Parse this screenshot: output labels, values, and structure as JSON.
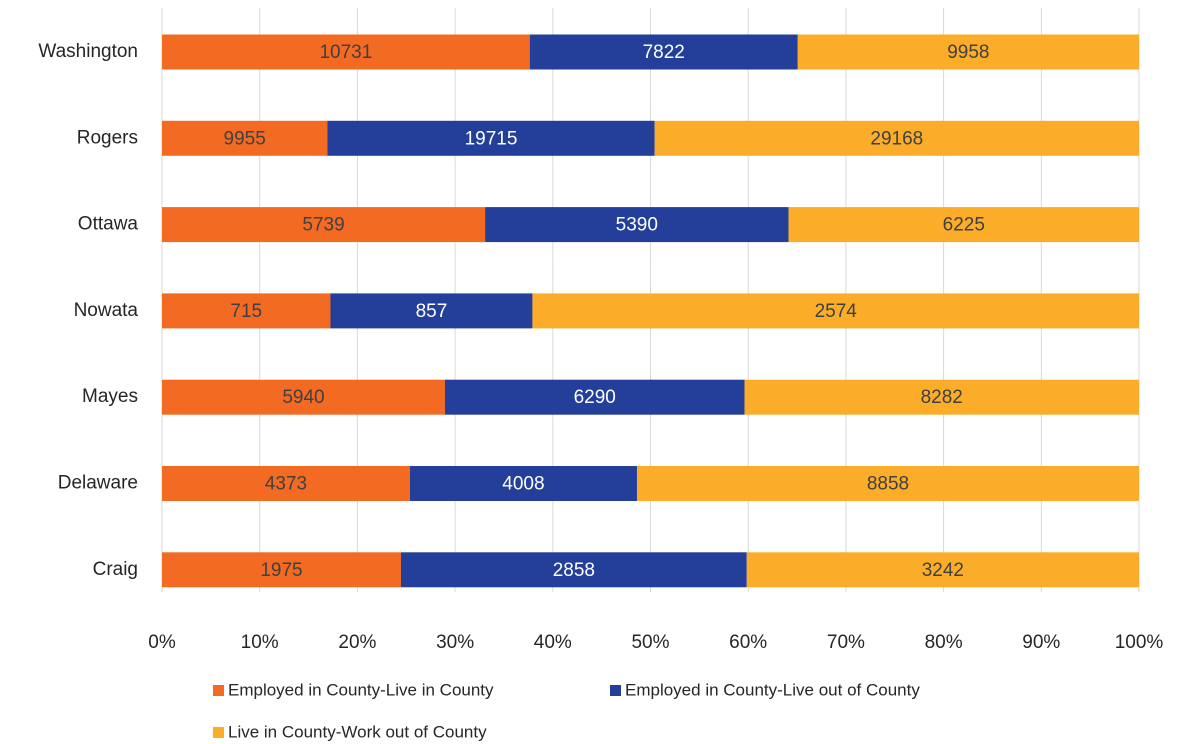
{
  "chart_data": {
    "type": "bar",
    "orientation": "horizontal",
    "stack": "percent",
    "categories": [
      "Washington",
      "Rogers",
      "Ottawa",
      "Nowata",
      "Mayes",
      "Delaware",
      "Craig"
    ],
    "series": [
      {
        "name": "Employed in County-Live in County",
        "color": "#f36a22",
        "label_color": "#404040",
        "values": [
          10731,
          9955,
          5739,
          715,
          5940,
          4373,
          1975
        ]
      },
      {
        "name": "Employed in County-Live out of County",
        "color": "#233f9a",
        "label_color": "#ffffff",
        "values": [
          7822,
          19715,
          5390,
          857,
          6290,
          4008,
          2858
        ]
      },
      {
        "name": "Live in County-Work out of County",
        "color": "#fbad2a",
        "label_color": "#404040",
        "values": [
          9958,
          29168,
          6225,
          2574,
          8282,
          8858,
          3242
        ]
      }
    ],
    "xlim": [
      0,
      100
    ],
    "xticks": [
      {
        "value": 0,
        "label": "0%"
      },
      {
        "value": 10,
        "label": "10%"
      },
      {
        "value": 20,
        "label": "20%"
      },
      {
        "value": 30,
        "label": "30%"
      },
      {
        "value": 40,
        "label": "40%"
      },
      {
        "value": 50,
        "label": "50%"
      },
      {
        "value": 60,
        "label": "60%"
      },
      {
        "value": 70,
        "label": "70%"
      },
      {
        "value": 80,
        "label": "80%"
      },
      {
        "value": 90,
        "label": "90%"
      },
      {
        "value": 100,
        "label": "100%"
      }
    ],
    "grid": true,
    "legend": "bottom"
  }
}
